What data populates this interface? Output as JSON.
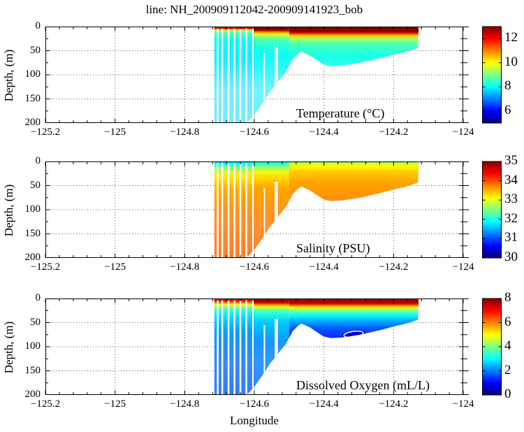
{
  "chart_data": {
    "type": "heatmap",
    "title": "line: NH_200909112042-200909141923_bob",
    "xlabel": "Longitude",
    "ylabel": "Depth, (m)",
    "colormap": "jet",
    "legend_position": "right-colorbars",
    "grid": "dotted",
    "axes": {
      "lon_min": -125.2,
      "lon_max": -124.0,
      "depth_min": 0,
      "depth_max": 200,
      "x_ticks": [
        -125.2,
        -125,
        -124.8,
        -124.6,
        -124.4,
        -124.2,
        -124
      ],
      "x_tick_labels": [
        "−125.2",
        "−125",
        "−124.8",
        "−124.6",
        "−124.4",
        "−124.2",
        "−124"
      ],
      "x_minor_step": 0.04,
      "y_major_ticks": [
        0,
        50,
        100,
        150,
        200
      ],
      "y_tick_labels": [
        "0",
        "50",
        "100",
        "150",
        "200"
      ],
      "y_minor_ticks": [
        25,
        75,
        125,
        175
      ],
      "grid_lons": [
        -125,
        -124.8,
        -124.6,
        -124.4,
        -124.2
      ],
      "grid_depths": [
        50,
        100,
        150
      ]
    },
    "lon_extent": [
      -124.715,
      -124.128
    ],
    "bathymetry_lon_depth_m": [
      [
        -124.715,
        202
      ],
      [
        -124.63,
        202
      ],
      [
        -124.615,
        195
      ],
      [
        -124.6,
        183
      ],
      [
        -124.585,
        168
      ],
      [
        -124.57,
        152
      ],
      [
        -124.555,
        135
      ],
      [
        -124.54,
        122
      ],
      [
        -124.525,
        108
      ],
      [
        -124.51,
        95
      ],
      [
        -124.5,
        82
      ],
      [
        -124.49,
        68
      ],
      [
        -124.475,
        57
      ],
      [
        -124.465,
        52
      ],
      [
        -124.455,
        55
      ],
      [
        -124.44,
        60
      ],
      [
        -124.42,
        70
      ],
      [
        -124.4,
        79
      ],
      [
        -124.38,
        82
      ],
      [
        -124.35,
        81
      ],
      [
        -124.32,
        78
      ],
      [
        -124.29,
        74
      ],
      [
        -124.26,
        69
      ],
      [
        -124.23,
        64
      ],
      [
        -124.2,
        58
      ],
      [
        -124.17,
        53
      ],
      [
        -124.15,
        49
      ],
      [
        -124.13,
        44
      ]
    ],
    "profile_gaps": [
      {
        "lon": -124.705,
        "width": 0.005,
        "from_depth": 4
      },
      {
        "lon": -124.692,
        "width": 0.005,
        "from_depth": 4
      },
      {
        "lon": -124.674,
        "width": 0.005,
        "from_depth": 4
      },
      {
        "lon": -124.657,
        "width": 0.005,
        "from_depth": 4
      },
      {
        "lon": -124.64,
        "width": 0.005,
        "from_depth": 4
      },
      {
        "lon": -124.623,
        "width": 0.005,
        "from_depth": 4
      },
      {
        "lon": -124.604,
        "width": 0.004,
        "from_depth": 4
      },
      {
        "lon": -124.571,
        "width": 0.004,
        "from_depth": 55
      },
      {
        "lon": -124.537,
        "width": 0.009,
        "from_depth": 42
      }
    ],
    "panels": [
      {
        "name": "temperature",
        "caption": "Temperature (°C)",
        "units": "°C",
        "clim": [
          5,
          13
        ],
        "colorbar_ticks": [
          6,
          8,
          10,
          12
        ],
        "deep_fade": 0.45,
        "segments": [
          {
            "lon": [
              -124.715,
              -124.6
            ],
            "profile": [
              [
                0,
                12.8
              ],
              [
                4,
                12.3
              ],
              [
                7,
                10.2
              ],
              [
                10,
                9.1
              ],
              [
                16,
                8.5
              ],
              [
                28,
                8.1
              ],
              [
                70,
                7.9
              ],
              [
                140,
                7.75
              ],
              [
                200,
                7.7
              ]
            ]
          },
          {
            "lon": [
              -124.6,
              -124.5
            ],
            "profile": [
              [
                0,
                13
              ],
              [
                7,
                12.9
              ],
              [
                11,
                11.2
              ],
              [
                15,
                10.1
              ],
              [
                21,
                9.1
              ],
              [
                30,
                8.5
              ],
              [
                55,
                8.1
              ],
              [
                120,
                7.85
              ],
              [
                200,
                7.75
              ]
            ]
          },
          {
            "lon": [
              -124.5,
              -124.128
            ],
            "profile": [
              [
                0,
                13
              ],
              [
                11,
                12.9
              ],
              [
                15,
                11.5
              ],
              [
                19,
                10.4
              ],
              [
                25,
                9.3
              ],
              [
                36,
                8.6
              ],
              [
                60,
                8.2
              ],
              [
                100,
                8.0
              ],
              [
                140,
                7.9
              ]
            ]
          }
        ]
      },
      {
        "name": "salinity",
        "caption": "Salinity (PSU)",
        "units": "PSU",
        "clim": [
          30,
          35
        ],
        "colorbar_ticks": [
          30,
          31,
          32,
          33,
          34,
          35
        ],
        "deep_fade": 0.18,
        "segments": [
          {
            "lon": [
              -124.715,
              -124.6
            ],
            "profile": [
              [
                0,
                31.6
              ],
              [
                5,
                31.9
              ],
              [
                10,
                32.3
              ],
              [
                18,
                32.8
              ],
              [
                30,
                33.2
              ],
              [
                55,
                33.5
              ],
              [
                100,
                33.7
              ],
              [
                160,
                33.85
              ],
              [
                200,
                33.9
              ]
            ]
          },
          {
            "lon": [
              -124.6,
              -124.5
            ],
            "profile": [
              [
                0,
                31.9
              ],
              [
                6,
                32.2
              ],
              [
                12,
                32.6
              ],
              [
                20,
                33.0
              ],
              [
                32,
                33.3
              ],
              [
                55,
                33.55
              ],
              [
                100,
                33.7
              ],
              [
                200,
                33.9
              ]
            ]
          },
          {
            "lon": [
              -124.5,
              -124.128
            ],
            "profile": [
              [
                0,
                32.4
              ],
              [
                4,
                32.9
              ],
              [
                10,
                33.15
              ],
              [
                20,
                33.35
              ],
              [
                40,
                33.55
              ],
              [
                80,
                33.7
              ],
              [
                140,
                33.8
              ]
            ]
          }
        ]
      },
      {
        "name": "dissolved-oxygen",
        "caption": "Dissolved Oxygen (mL/L)",
        "units": "mL/L",
        "clim": [
          0,
          8
        ],
        "colorbar_ticks": [
          0,
          2,
          4,
          6,
          8
        ],
        "deep_fade": 0.2,
        "segments": [
          {
            "lon": [
              -124.715,
              -124.6
            ],
            "profile": [
              [
                0,
                7.4
              ],
              [
                5,
                7.1
              ],
              [
                9,
                5.9
              ],
              [
                13,
                4.9
              ],
              [
                18,
                4.1
              ],
              [
                25,
                3.3
              ],
              [
                40,
                2.7
              ],
              [
                70,
                2.2
              ],
              [
                120,
                1.9
              ],
              [
                200,
                1.7
              ]
            ]
          },
          {
            "lon": [
              -124.6,
              -124.5
            ],
            "profile": [
              [
                0,
                7.8
              ],
              [
                8,
                7.5
              ],
              [
                12,
                6.3
              ],
              [
                16,
                5.1
              ],
              [
                22,
                4.1
              ],
              [
                30,
                3.3
              ],
              [
                50,
                2.6
              ],
              [
                90,
                2.1
              ],
              [
                200,
                1.8
              ]
            ]
          },
          {
            "lon": [
              -124.5,
              -124.128
            ],
            "profile": [
              [
                0,
                7.8
              ],
              [
                10,
                7.5
              ],
              [
                14,
                6.3
              ],
              [
                18,
                5.1
              ],
              [
                24,
                4.1
              ],
              [
                34,
                3.1
              ],
              [
                48,
                2.3
              ],
              [
                62,
                1.7
              ],
              [
                80,
                1.25
              ],
              [
                120,
                1.1
              ]
            ]
          }
        ],
        "hypoxia_patch": {
          "lon_center": -124.315,
          "depth_center_m": 74,
          "lon_radius": 0.034,
          "depth_radius_m": 8,
          "min_value": 0.7,
          "contour_value": 1,
          "contour_color": "#ffffff"
        }
      }
    ]
  }
}
